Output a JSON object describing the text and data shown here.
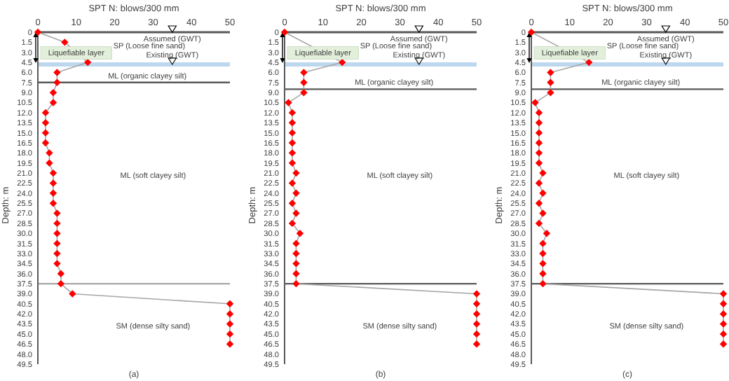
{
  "chart_data": [
    {
      "type": "line",
      "xlabel": "SPT N: blows/300 mm",
      "ylabel": "Depth: m",
      "xlim": [
        0,
        50
      ],
      "xticks": [
        0,
        10,
        20,
        30,
        40,
        50
      ],
      "ylim": [
        49.5,
        0
      ],
      "yticks": [
        0,
        1.5,
        {
          "value": 3,
          "label": "3.0"
        },
        4.5,
        {
          "value": 6,
          "label": "6.0"
        },
        7.5,
        {
          "value": 9,
          "label": "9.0"
        },
        10.5,
        {
          "value": 12,
          "label": "12.0"
        },
        13.5,
        {
          "value": 15,
          "label": "15.0"
        },
        16.5,
        {
          "value": 18,
          "label": "18.0"
        },
        19.5,
        {
          "value": 21,
          "label": "21.0"
        },
        22.5,
        {
          "value": 24,
          "label": "24.0"
        },
        25.5,
        {
          "value": 27,
          "label": "27.0"
        },
        28.5,
        {
          "value": 30,
          "label": "30.0"
        },
        31.5,
        {
          "value": 33,
          "label": "33.0"
        },
        34.5,
        {
          "value": 36,
          "label": "36.0"
        },
        37.5,
        {
          "value": 39,
          "label": "39.0"
        },
        40.5,
        {
          "value": 42,
          "label": "42.0"
        },
        43.5,
        {
          "value": 45,
          "label": "45.0"
        },
        46.5,
        {
          "value": 48,
          "label": "48.0"
        },
        49.5
      ],
      "marker": "diamond",
      "series": [
        {
          "color": "#ff0000",
          "x": [
            0,
            7,
            13,
            5,
            5,
            4,
            4,
            2,
            2,
            2,
            2,
            3,
            3,
            4,
            4,
            4,
            4,
            5,
            5,
            5,
            5,
            5,
            5,
            6,
            6,
            9,
            50,
            50,
            50,
            50,
            50
          ],
          "values": [
            0,
            1.5,
            4.5,
            6,
            7.5,
            9,
            10.5,
            12,
            13.5,
            15,
            16.5,
            18,
            19.5,
            21,
            22.5,
            24,
            25.5,
            27,
            28.5,
            30,
            31.5,
            33,
            34.5,
            36,
            37.5,
            39,
            40.5,
            42,
            43.5,
            45,
            46.5
          ]
        }
      ],
      "ref_lines": [
        {
          "axis": "y",
          "value": 4.8,
          "label": "Existing (GWT)",
          "color": "#bdd7ee"
        },
        {
          "axis": "y",
          "value": 7.5,
          "color": "#595959"
        },
        {
          "axis": "y",
          "value": 37.5,
          "color": "#a6a6a6"
        }
      ],
      "annotations": [
        "Liquefiable layer",
        "Assumed (GWT)",
        "SP (Loose fine sand)",
        "ML (organic clayey silt)",
        "ML (soft clayey silt)",
        "SM (dense silty sand)",
        "(a)"
      ]
    },
    {
      "type": "line",
      "xlabel": "SPT N: blows/300 mm",
      "ylabel": "Depth: m",
      "xlim": [
        0,
        50
      ],
      "xticks": [
        0,
        10,
        20,
        30,
        40,
        50
      ],
      "ylim": [
        49.5,
        0
      ],
      "yticks": [
        0,
        1.5,
        {
          "value": 3,
          "label": "3.0"
        },
        4.5,
        {
          "value": 6,
          "label": "6.0"
        },
        7.5,
        {
          "value": 9,
          "label": "9.0"
        },
        10.5,
        {
          "value": 12,
          "label": "12.0"
        },
        13.5,
        {
          "value": 15,
          "label": "15.0"
        },
        16.5,
        {
          "value": 18,
          "label": "18.0"
        },
        19.5,
        {
          "value": 21,
          "label": "21.0"
        },
        22.5,
        {
          "value": 24,
          "label": "24.0"
        },
        25.5,
        {
          "value": 27,
          "label": "27.0"
        },
        28.5,
        {
          "value": 30,
          "label": "30.0"
        },
        31.5,
        {
          "value": 33,
          "label": "33.0"
        },
        34.5,
        {
          "value": 36,
          "label": "36.0"
        },
        37.5,
        {
          "value": 39,
          "label": "39.0"
        },
        40.5,
        {
          "value": 42,
          "label": "42.0"
        },
        43.5,
        {
          "value": 45,
          "label": "45.0"
        },
        46.5,
        {
          "value": 48,
          "label": "48.0"
        },
        49.5
      ],
      "marker": "diamond",
      "series": [
        {
          "color": "#ff0000",
          "x": [
            0,
            15,
            5,
            5,
            5,
            1,
            2,
            2,
            2,
            2,
            2,
            2,
            3,
            2,
            3,
            2,
            3,
            2,
            4,
            3,
            3,
            3,
            3,
            3,
            50,
            50,
            50,
            50,
            50,
            50
          ],
          "values": [
            0,
            4.5,
            6,
            7.5,
            9,
            10.5,
            12,
            13.5,
            15,
            16.5,
            18,
            19.5,
            21,
            22.5,
            24,
            25.5,
            27,
            28.5,
            30,
            31.5,
            33,
            34.5,
            36,
            37.5,
            39,
            40.5,
            42,
            43.5,
            45,
            46.5
          ]
        }
      ],
      "ref_lines": [
        {
          "axis": "y",
          "value": 4.8,
          "label": "Existing (GWT)",
          "color": "#bdd7ee"
        },
        {
          "axis": "y",
          "value": 8.5,
          "color": "#595959"
        },
        {
          "axis": "y",
          "value": 37.5,
          "color": "#595959"
        }
      ],
      "annotations": [
        "Liquefiable layer",
        "Assumed (GWT)",
        "SP (Loose fine sand)",
        "ML (organic clayey silt)",
        "ML (soft clayey silt)",
        "SM (dense silty sand)",
        "(b)"
      ]
    },
    {
      "type": "line",
      "xlabel": "SPT N: blows/300 mm",
      "ylabel": "Depth: m",
      "xlim": [
        0,
        50
      ],
      "xticks": [
        0,
        10,
        20,
        30,
        40,
        50
      ],
      "ylim": [
        49.5,
        0
      ],
      "yticks": [
        0,
        1.5,
        {
          "value": 3,
          "label": "3.0"
        },
        4.5,
        {
          "value": 6,
          "label": "6.0"
        },
        7.5,
        {
          "value": 9,
          "label": "9.0"
        },
        10.5,
        {
          "value": 12,
          "label": "12.0"
        },
        13.5,
        {
          "value": 15,
          "label": "15.0"
        },
        16.5,
        {
          "value": 18,
          "label": "18.0"
        },
        19.5,
        {
          "value": 21,
          "label": "21.0"
        },
        22.5,
        {
          "value": 24,
          "label": "24.0"
        },
        25.5,
        {
          "value": 27,
          "label": "27.0"
        },
        28.5,
        {
          "value": 30,
          "label": "30.0"
        },
        31.5,
        {
          "value": 33,
          "label": "33.0"
        },
        34.5,
        {
          "value": 36,
          "label": "36.0"
        },
        37.5,
        {
          "value": 39,
          "label": "39.0"
        },
        40.5,
        {
          "value": 42,
          "label": "42.0"
        },
        43.5,
        {
          "value": 45,
          "label": "45.0"
        },
        46.5,
        {
          "value": 48,
          "label": "48.0"
        },
        49.5
      ],
      "marker": "diamond",
      "series": [
        {
          "color": "#ff0000",
          "x": [
            0,
            15,
            5,
            5,
            5,
            1,
            2,
            2,
            2,
            2,
            2,
            2,
            3,
            2,
            3,
            2,
            3,
            2,
            4,
            3,
            3,
            3,
            3,
            3,
            50,
            50,
            50,
            50,
            50,
            50
          ],
          "values": [
            0,
            4.5,
            6,
            7.5,
            9,
            10.5,
            12,
            13.5,
            15,
            16.5,
            18,
            19.5,
            21,
            22.5,
            24,
            25.5,
            27,
            28.5,
            30,
            31.5,
            33,
            34.5,
            36,
            37.5,
            39,
            40.5,
            42,
            43.5,
            45,
            46.5
          ]
        }
      ],
      "ref_lines": [
        {
          "axis": "y",
          "value": 4.8,
          "label": "Existing (GWT)",
          "color": "#bdd7ee"
        },
        {
          "axis": "y",
          "value": 8.5,
          "color": "#595959"
        },
        {
          "axis": "y",
          "value": 37.5,
          "color": "#595959"
        }
      ],
      "annotations": [
        "Liquefiable layer",
        "Assumed (GWT)",
        "SP (Loose fine sand)",
        "ML (organic clayey silt)",
        "ML (soft clayey silt)",
        "SM (dense silty sand)",
        "(c)"
      ]
    }
  ]
}
